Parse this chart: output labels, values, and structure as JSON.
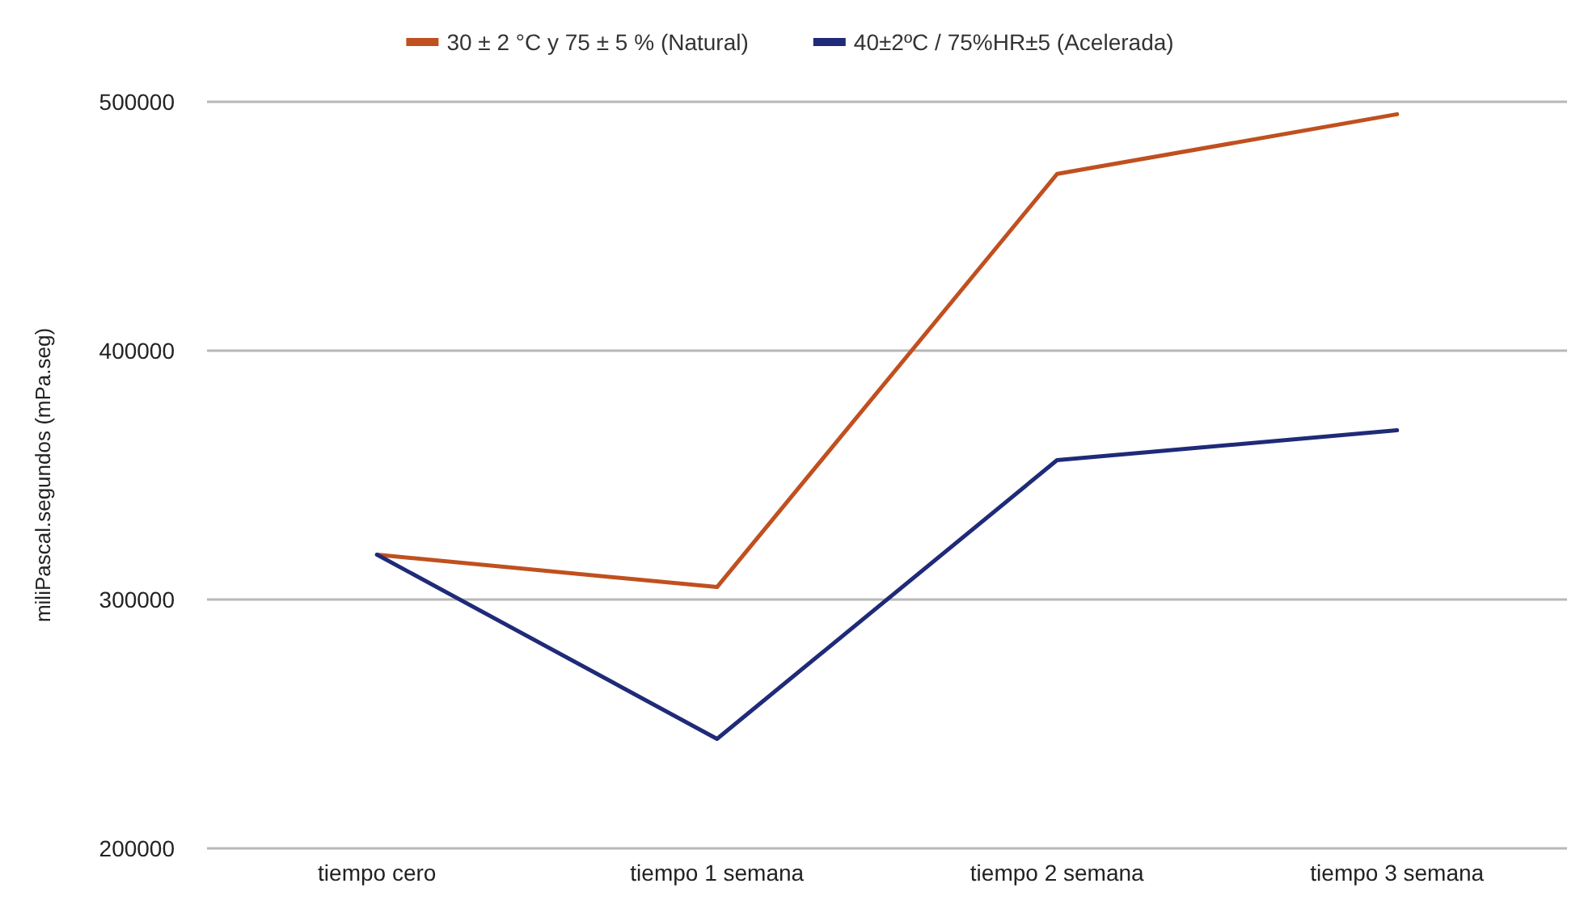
{
  "chart_data": {
    "type": "line",
    "ylabel": "miliPascal.segundos (mPa.seg)",
    "categories": [
      "tiempo cero",
      "tiempo 1 semana",
      "tiempo 2 semana",
      "tiempo 3 semana"
    ],
    "series": [
      {
        "name": "30 ± 2 °C y 75 ± 5 % (Natural)",
        "color": "#c0501f",
        "values": [
          318000,
          305000,
          471000,
          495000
        ]
      },
      {
        "name": "40±2ºC / 75%HR±5 (Acelerada)",
        "color": "#1f2a78",
        "values": [
          318000,
          244000,
          356000,
          368000
        ]
      }
    ],
    "ylim": [
      200000,
      500000
    ],
    "yticks": [
      200000,
      300000,
      400000,
      500000
    ],
    "grid": "y",
    "legend": "top",
    "marker": "none",
    "line_style": "solid"
  }
}
